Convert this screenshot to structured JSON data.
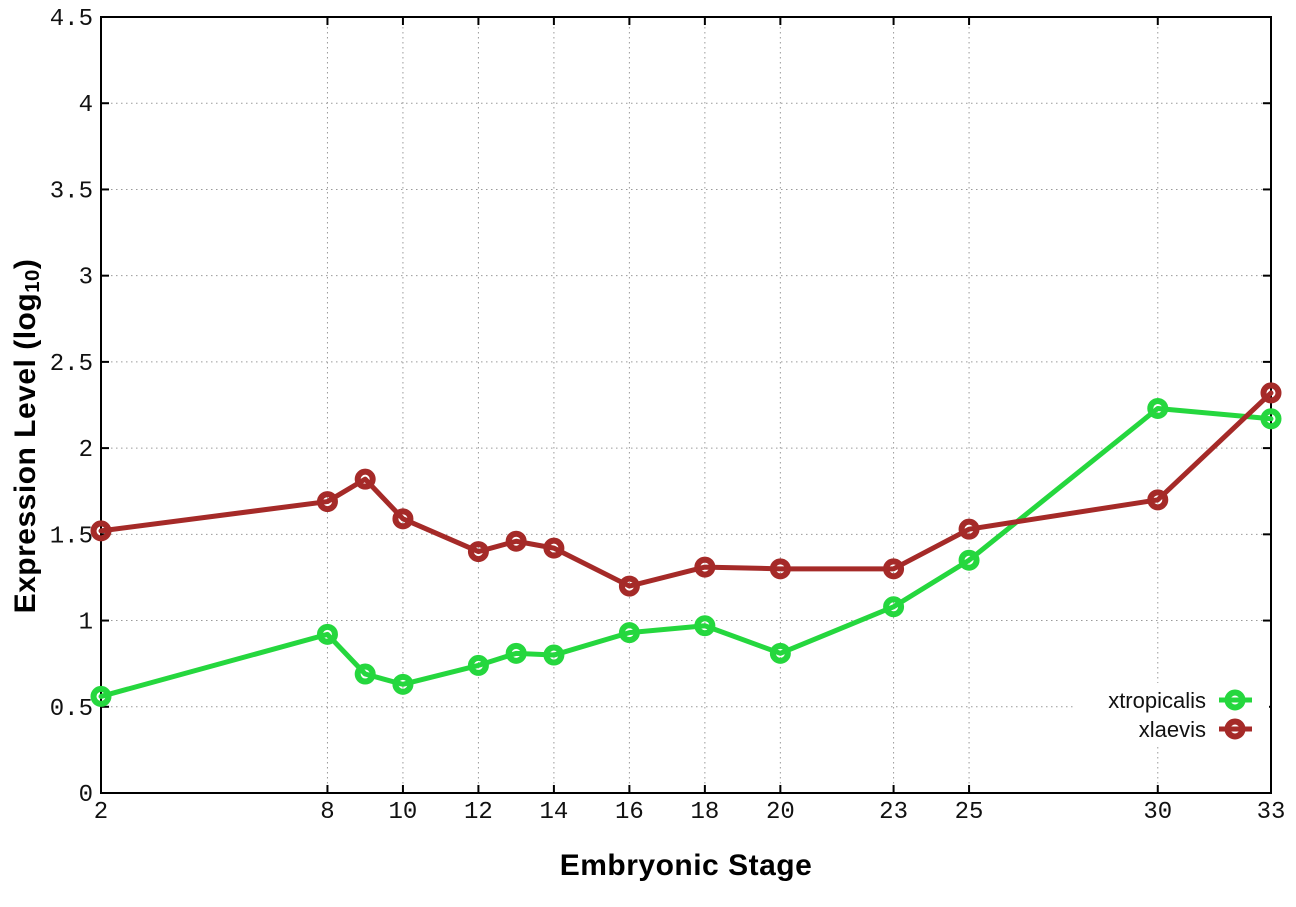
{
  "chart_data": {
    "type": "line",
    "title": "",
    "xlabel": "Embryonic Stage",
    "ylabel": "Expression Level (log10)",
    "ylabel_parts": {
      "main": "Expression Level (log",
      "sub": "10",
      "end": ")"
    },
    "x": [
      2,
      8,
      9,
      10,
      12,
      13,
      14,
      16,
      18,
      20,
      23,
      25,
      30,
      33
    ],
    "series": [
      {
        "name": "xtropicalis",
        "color": "#25d73e",
        "marker": "open-circle",
        "values": [
          0.56,
          0.92,
          0.69,
          0.63,
          0.74,
          0.81,
          0.8,
          0.93,
          0.97,
          0.81,
          1.08,
          1.35,
          2.23,
          2.17
        ]
      },
      {
        "name": "xlaevis",
        "color": "#a52a28",
        "marker": "open-circle",
        "values": [
          1.52,
          1.69,
          1.82,
          1.59,
          1.4,
          1.46,
          1.42,
          1.2,
          1.31,
          1.3,
          1.3,
          1.53,
          1.7,
          2.32
        ]
      }
    ],
    "xlim": [
      2,
      33
    ],
    "ylim": [
      0,
      4.5
    ],
    "xticks": [
      2,
      8,
      10,
      12,
      14,
      16,
      18,
      20,
      23,
      25,
      30,
      33
    ],
    "yticks": [
      0,
      0.5,
      1,
      1.5,
      2,
      2.5,
      3,
      3.5,
      4,
      4.5
    ],
    "grid": true,
    "grid_style": "dotted",
    "legend_position": "bottom-right",
    "legend_opaque": true
  },
  "colors": {
    "background": "#ffffff",
    "axis": "#000000",
    "grid": "#9a9a9a",
    "tick_label": "#111111",
    "legend_text": "#111111"
  }
}
